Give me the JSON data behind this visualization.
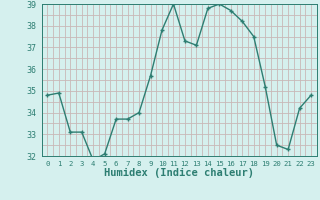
{
  "x": [
    0,
    1,
    2,
    3,
    4,
    5,
    6,
    7,
    8,
    9,
    10,
    11,
    12,
    13,
    14,
    15,
    16,
    17,
    18,
    19,
    20,
    21,
    22,
    23
  ],
  "y": [
    34.8,
    34.9,
    33.1,
    33.1,
    31.8,
    32.1,
    33.7,
    33.7,
    34.0,
    35.7,
    37.8,
    39.0,
    37.3,
    37.1,
    38.8,
    39.0,
    38.7,
    38.2,
    37.5,
    35.2,
    32.5,
    32.3,
    34.2,
    34.8
  ],
  "xlabel": "Humidex (Indice chaleur)",
  "ylim": [
    32,
    39
  ],
  "xlim": [
    -0.5,
    23.5
  ],
  "yticks": [
    32,
    33,
    34,
    35,
    36,
    37,
    38,
    39
  ],
  "xticks": [
    0,
    1,
    2,
    3,
    4,
    5,
    6,
    7,
    8,
    9,
    10,
    11,
    12,
    13,
    14,
    15,
    16,
    17,
    18,
    19,
    20,
    21,
    22,
    23
  ],
  "line_color": "#2d7e72",
  "marker": "P",
  "marker_size": 2.5,
  "bg_color": "#d5f0ee",
  "grid_color": "#c8b8b8",
  "axis_color": "#2d7e72",
  "tick_color": "#2d7e72",
  "label_color": "#2d7e72",
  "xlabel_fontsize": 7.5,
  "tick_fontsize": 6.0,
  "linewidth": 1.0
}
